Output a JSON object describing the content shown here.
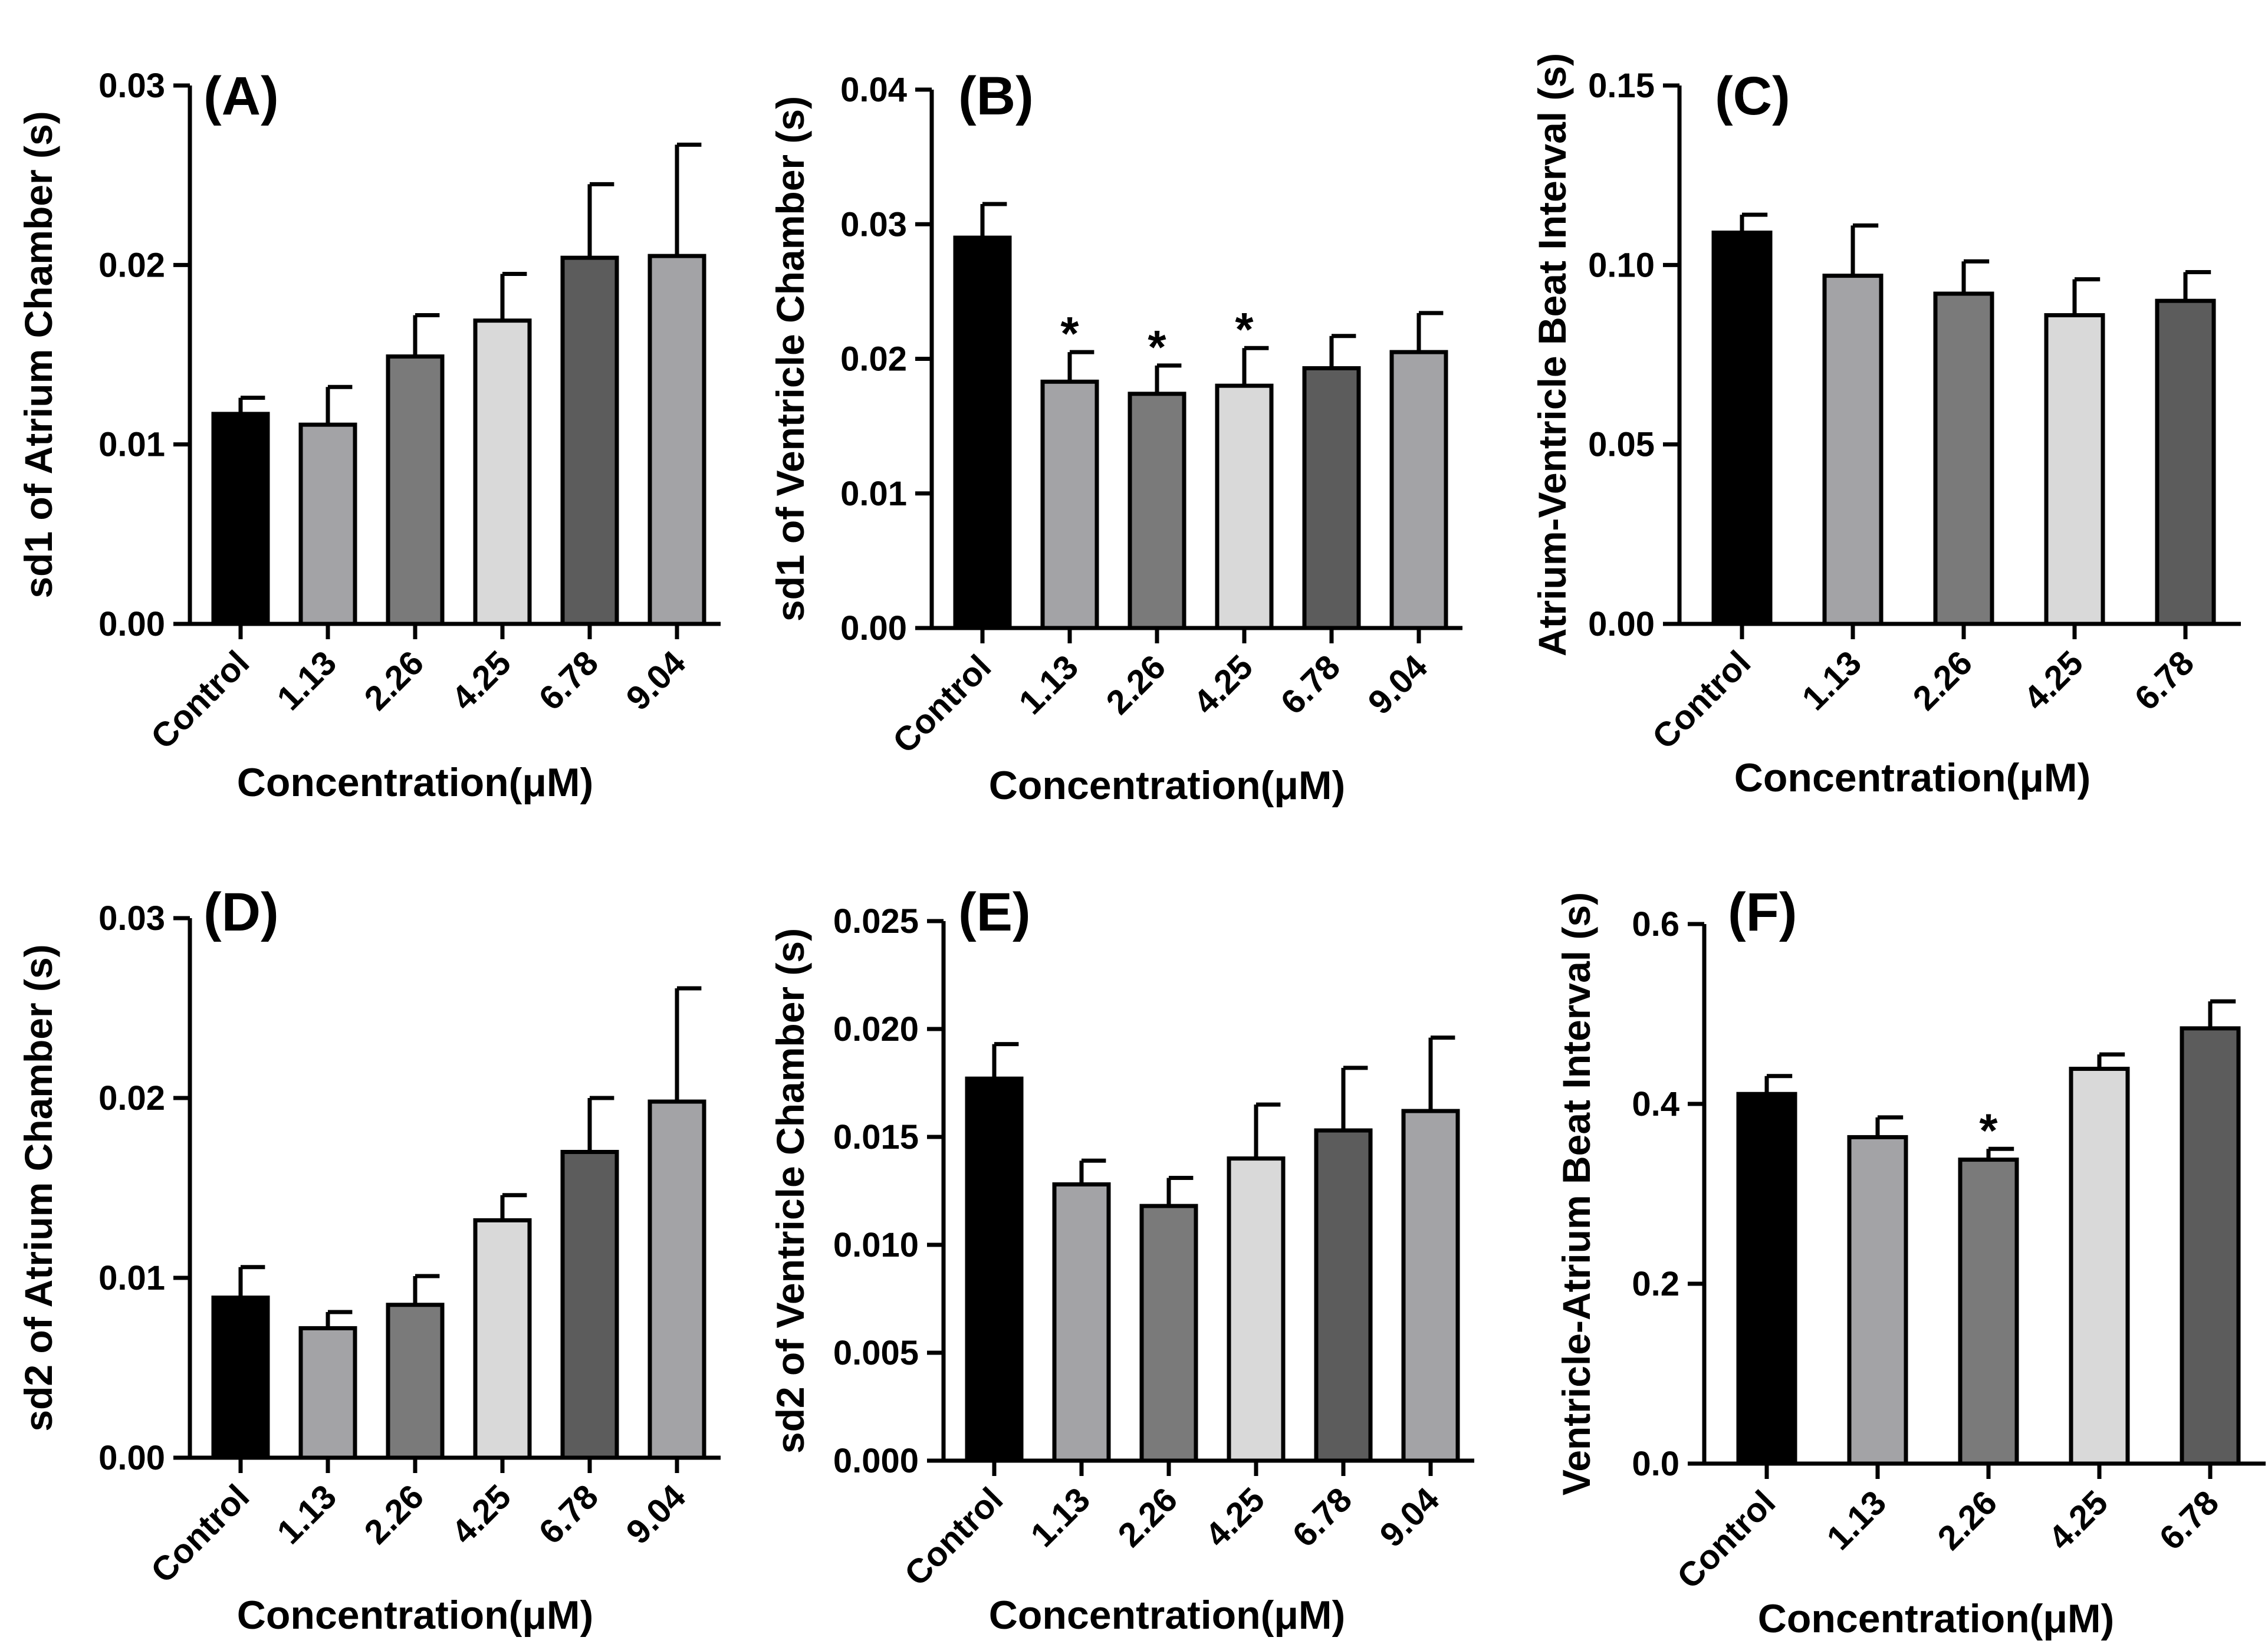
{
  "chart_data": [
    {
      "type": "bar",
      "panel_label": "(A)",
      "ylabel": "sd1 of Atrium Chamber (s)",
      "xlabel": "Concentration(μM)",
      "categories": [
        "Control",
        "1.13",
        "2.26",
        "4.25",
        "6.78",
        "9.04"
      ],
      "values": [
        0.0117,
        0.0111,
        0.0149,
        0.0169,
        0.0204,
        0.0205
      ],
      "errors": [
        0.0009,
        0.0021,
        0.0023,
        0.0026,
        0.0041,
        0.0062
      ],
      "significance": [
        "",
        "",
        "",
        "",
        "",
        ""
      ],
      "ylim": [
        0,
        0.03
      ],
      "yticks": [
        "0.00",
        "0.01",
        "0.02",
        "0.03"
      ],
      "bar_colors": [
        "#000000",
        "#a3a3a6",
        "#7a7a7a",
        "#d9d9d9",
        "#5c5c5c",
        "#a3a3a6"
      ]
    },
    {
      "type": "bar",
      "panel_label": "(B)",
      "ylabel": "sd1 of Ventricle Chamber (s)",
      "xlabel": "Concentration(μM)",
      "categories": [
        "Control",
        "1.13",
        "2.26",
        "4.25",
        "6.78",
        "9.04"
      ],
      "values": [
        0.029,
        0.0183,
        0.0174,
        0.018,
        0.0193,
        0.0205
      ],
      "errors": [
        0.0025,
        0.0022,
        0.0021,
        0.0028,
        0.0024,
        0.0029
      ],
      "significance": [
        "",
        "*",
        "*",
        "*",
        "",
        ""
      ],
      "ylim": [
        0,
        0.04
      ],
      "yticks": [
        "0.00",
        "0.01",
        "0.02",
        "0.03",
        "0.04"
      ],
      "bar_colors": [
        "#000000",
        "#a3a3a6",
        "#7a7a7a",
        "#d9d9d9",
        "#5c5c5c",
        "#a3a3a6"
      ]
    },
    {
      "type": "bar",
      "panel_label": "(C)",
      "ylabel": "Atrium-Ventricle Beat Interval (s)",
      "xlabel": "Concentration(μM)",
      "categories": [
        "Control",
        "1.13",
        "2.26",
        "4.25",
        "6.78"
      ],
      "values": [
        0.109,
        0.097,
        0.092,
        0.086,
        0.09
      ],
      "errors": [
        0.005,
        0.014,
        0.009,
        0.01,
        0.008
      ],
      "significance": [
        "",
        "",
        "",
        "",
        ""
      ],
      "ylim": [
        0,
        0.15
      ],
      "yticks": [
        "0.00",
        "0.05",
        "0.10",
        "0.15"
      ],
      "bar_colors": [
        "#000000",
        "#a3a3a6",
        "#7a7a7a",
        "#d9d9d9",
        "#5c5c5c"
      ]
    },
    {
      "type": "bar",
      "panel_label": "(D)",
      "ylabel": "sd2 of Atrium Chamber (s)",
      "xlabel": "Concentration(μM)",
      "categories": [
        "Control",
        "1.13",
        "2.26",
        "4.25",
        "6.78",
        "9.04"
      ],
      "values": [
        0.0089,
        0.0072,
        0.0085,
        0.0132,
        0.017,
        0.0198
      ],
      "errors": [
        0.0017,
        0.0009,
        0.0016,
        0.0014,
        0.003,
        0.0063
      ],
      "significance": [
        "",
        "",
        "",
        "",
        "",
        ""
      ],
      "ylim": [
        0,
        0.03
      ],
      "yticks": [
        "0.00",
        "0.01",
        "0.02",
        "0.03"
      ],
      "bar_colors": [
        "#000000",
        "#a3a3a6",
        "#7a7a7a",
        "#d9d9d9",
        "#5c5c5c",
        "#a3a3a6"
      ]
    },
    {
      "type": "bar",
      "panel_label": "(E)",
      "ylabel": "sd2 of  Ventricle Chamber (s)",
      "xlabel": "Concentration(μM)",
      "categories": [
        "Control",
        "1.13",
        "2.26",
        "4.25",
        "6.78",
        "9.04"
      ],
      "values": [
        0.0177,
        0.0128,
        0.0118,
        0.014,
        0.0153,
        0.0162
      ],
      "errors": [
        0.0016,
        0.0011,
        0.0013,
        0.0025,
        0.0029,
        0.0034
      ],
      "significance": [
        "",
        "",
        "",
        "",
        "",
        ""
      ],
      "ylim": [
        0,
        0.025
      ],
      "yticks": [
        "0.000",
        "0.005",
        "0.010",
        "0.015",
        "0.020",
        "0.025"
      ],
      "bar_colors": [
        "#000000",
        "#a3a3a6",
        "#7a7a7a",
        "#d9d9d9",
        "#5c5c5c",
        "#a3a3a6"
      ]
    },
    {
      "type": "bar",
      "panel_label": "(F)",
      "ylabel": "Ventricle-Atrium Beat Interval (s)",
      "xlabel": "Concentration(μM)",
      "categories": [
        "Control",
        "1.13",
        "2.26",
        "4.25",
        "6.78"
      ],
      "values": [
        0.411,
        0.363,
        0.338,
        0.439,
        0.484
      ],
      "errors": [
        0.02,
        0.022,
        0.012,
        0.016,
        0.03
      ],
      "significance": [
        "",
        "",
        "*",
        "",
        ""
      ],
      "ylim": [
        0,
        0.6
      ],
      "yticks": [
        "0.0",
        "0.2",
        "0.4",
        "0.6"
      ],
      "bar_colors": [
        "#000000",
        "#a3a3a6",
        "#7a7a7a",
        "#d9d9d9",
        "#5c5c5c"
      ]
    }
  ]
}
